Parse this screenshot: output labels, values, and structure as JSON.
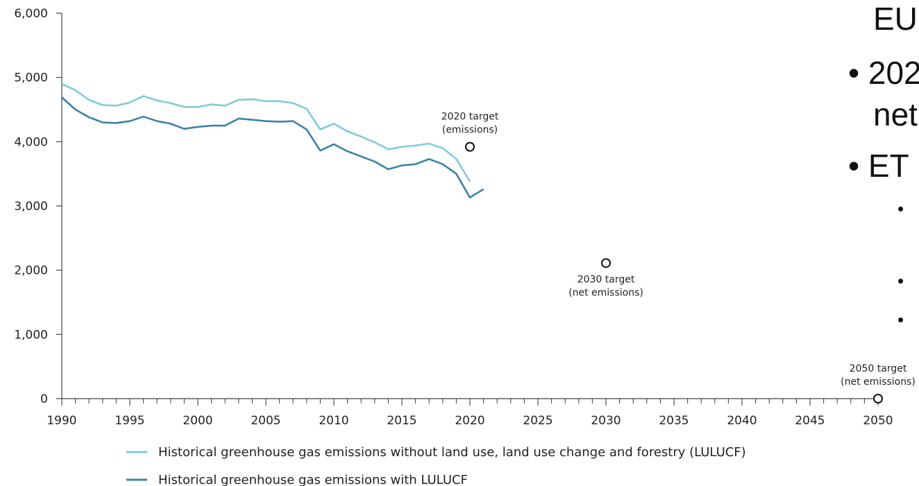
{
  "chart_data": {
    "type": "line",
    "title": "",
    "xlabel": "",
    "ylabel": "",
    "xlim": [
      1990,
      2050
    ],
    "ylim": [
      0,
      6000
    ],
    "grid": false,
    "x_ticks": [
      "1990",
      "1995",
      "2000",
      "2005",
      "2010",
      "2015",
      "2020",
      "2025",
      "2030",
      "2035",
      "2040",
      "2045",
      "2050"
    ],
    "y_ticks": [
      "0",
      "1,000",
      "2,000",
      "3,000",
      "4,000",
      "5,000",
      "6,000"
    ],
    "legend_position": "bottom",
    "series": [
      {
        "name": "Historical greenhouse gas emissions without land use, land use change and forestry (LULUCF)",
        "color": "#7ecbdc",
        "x": [
          1990,
          1991,
          1992,
          1993,
          1994,
          1995,
          1996,
          1997,
          1998,
          1999,
          2000,
          2001,
          2002,
          2003,
          2004,
          2005,
          2006,
          2007,
          2008,
          2009,
          2010,
          2011,
          2012,
          2013,
          2014,
          2015,
          2016,
          2017,
          2018,
          2019,
          2020
        ],
        "values": [
          4900,
          4800,
          4650,
          4570,
          4560,
          4610,
          4710,
          4640,
          4600,
          4540,
          4540,
          4580,
          4560,
          4650,
          4660,
          4630,
          4630,
          4600,
          4510,
          4190,
          4280,
          4160,
          4080,
          3990,
          3880,
          3920,
          3940,
          3970,
          3900,
          3730,
          3380
        ]
      },
      {
        "name": "Historical greenhouse gas emissions with LULUCF",
        "color": "#3b82a8",
        "x": [
          1990,
          1991,
          1992,
          1993,
          1994,
          1995,
          1996,
          1997,
          1998,
          1999,
          2000,
          2001,
          2002,
          2003,
          2004,
          2005,
          2006,
          2007,
          2008,
          2009,
          2010,
          2011,
          2012,
          2013,
          2014,
          2015,
          2016,
          2017,
          2018,
          2019,
          2020,
          2021
        ],
        "values": [
          4690,
          4500,
          4380,
          4300,
          4290,
          4320,
          4390,
          4320,
          4280,
          4200,
          4230,
          4250,
          4250,
          4360,
          4340,
          4320,
          4310,
          4320,
          4190,
          3860,
          3960,
          3850,
          3770,
          3690,
          3570,
          3630,
          3650,
          3730,
          3650,
          3500,
          3130,
          3260
        ]
      }
    ],
    "targets": [
      {
        "label_line1": "2020 target",
        "label_line2": "(emissions)",
        "x": 2020,
        "y": 3920
      },
      {
        "label_line1": "2030 target",
        "label_line2": "(net emissions)",
        "x": 2030,
        "y": 2110
      },
      {
        "label_line1": "2050 target",
        "label_line2": "(net emissions)",
        "x": 2050,
        "y": 0
      }
    ]
  },
  "slide_text": {
    "line1": "EU",
    "bullet1_line1": "• 202",
    "bullet1_line2": "net",
    "bullet2_line1": "• ET",
    "sub_bullet": "•"
  }
}
